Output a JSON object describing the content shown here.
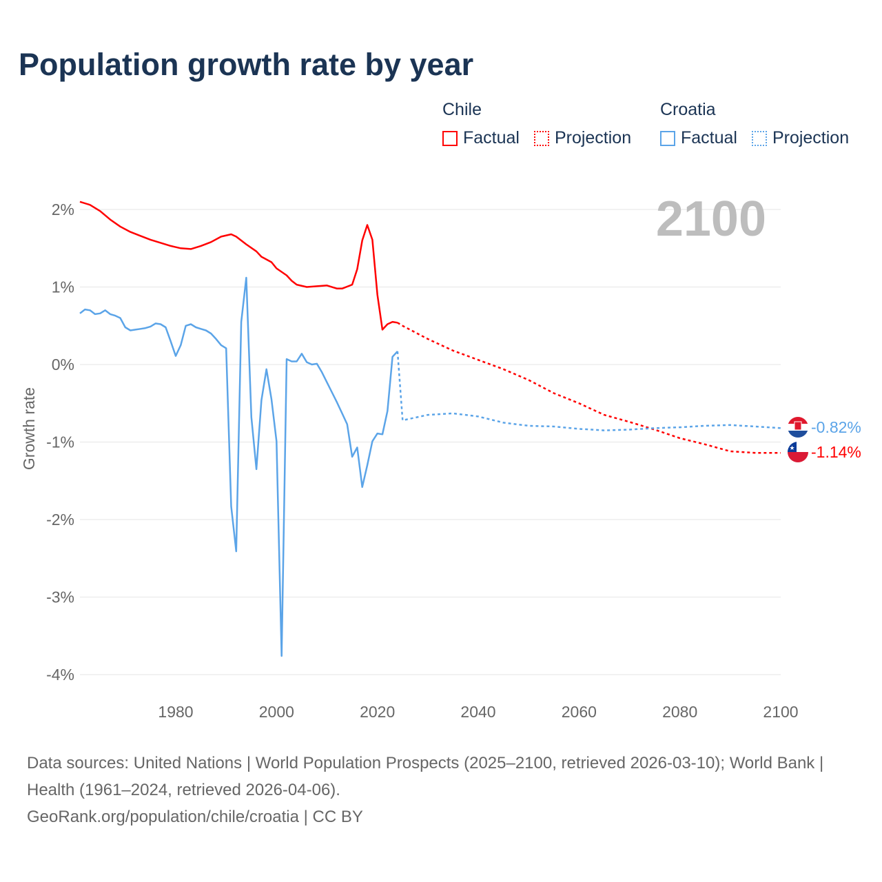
{
  "title": "Population growth rate by year",
  "legend": {
    "groups": [
      {
        "name": "Chile",
        "color": "#ff0000",
        "factual": "Factual",
        "projection": "Projection"
      },
      {
        "name": "Croatia",
        "color": "#5ba4e8",
        "factual": "Factual",
        "projection": "Projection"
      }
    ]
  },
  "year_label": "2100",
  "end_labels": {
    "croatia": "-0.82%",
    "chile": "-1.14%"
  },
  "footer": {
    "sources": "Data sources: United Nations | World Population Prospects (2025–2100, retrieved 2026-03-10); World Bank | Health (1961–2024, retrieved 2026-04-06).",
    "link": "GeoRank.org/population/chile/croatia | CC BY"
  },
  "chart_data": {
    "type": "line",
    "title": "Population growth rate by year",
    "xlabel": "",
    "ylabel": "Growth rate",
    "xlim": [
      1961,
      2100
    ],
    "ylim": [
      -4.3,
      2.2
    ],
    "xticks": [
      1980,
      2000,
      2020,
      2040,
      2060,
      2080,
      2100
    ],
    "xtick_labels": [
      "1980",
      "2000",
      "2020",
      "2040",
      "2060",
      "2080",
      "2100"
    ],
    "yticks": [
      2,
      1,
      0,
      -1,
      -2,
      -3,
      -4
    ],
    "ytick_labels": [
      "2%",
      "1%",
      "0%",
      "-1%",
      "-2%",
      "-3%",
      "-4%"
    ],
    "grid": true,
    "series": [
      {
        "name": "Chile Factual",
        "color": "#ff0000",
        "style": "solid",
        "points": [
          [
            1961,
            2.1
          ],
          [
            1963,
            2.06
          ],
          [
            1965,
            1.98
          ],
          [
            1967,
            1.87
          ],
          [
            1969,
            1.78
          ],
          [
            1971,
            1.71
          ],
          [
            1973,
            1.66
          ],
          [
            1975,
            1.61
          ],
          [
            1977,
            1.57
          ],
          [
            1979,
            1.53
          ],
          [
            1981,
            1.5
          ],
          [
            1983,
            1.49
          ],
          [
            1985,
            1.53
          ],
          [
            1987,
            1.58
          ],
          [
            1989,
            1.65
          ],
          [
            1991,
            1.68
          ],
          [
            1992,
            1.65
          ],
          [
            1994,
            1.55
          ],
          [
            1996,
            1.46
          ],
          [
            1997,
            1.39
          ],
          [
            1999,
            1.32
          ],
          [
            2000,
            1.24
          ],
          [
            2002,
            1.15
          ],
          [
            2003,
            1.08
          ],
          [
            2004,
            1.03
          ],
          [
            2006,
            1.0
          ],
          [
            2008,
            1.01
          ],
          [
            2010,
            1.02
          ],
          [
            2012,
            0.98
          ],
          [
            2013,
            0.98
          ],
          [
            2015,
            1.03
          ],
          [
            2016,
            1.23
          ],
          [
            2017,
            1.6
          ],
          [
            2018,
            1.8
          ],
          [
            2019,
            1.61
          ],
          [
            2020,
            0.9
          ],
          [
            2021,
            0.45
          ],
          [
            2022,
            0.52
          ],
          [
            2023,
            0.55
          ],
          [
            2024,
            0.54
          ]
        ]
      },
      {
        "name": "Chile Projection",
        "color": "#ff0000",
        "style": "dotted",
        "points": [
          [
            2024,
            0.54
          ],
          [
            2025,
            0.5
          ],
          [
            2030,
            0.33
          ],
          [
            2035,
            0.18
          ],
          [
            2040,
            0.06
          ],
          [
            2045,
            -0.06
          ],
          [
            2050,
            -0.2
          ],
          [
            2055,
            -0.37
          ],
          [
            2060,
            -0.5
          ],
          [
            2065,
            -0.65
          ],
          [
            2070,
            -0.74
          ],
          [
            2075,
            -0.84
          ],
          [
            2080,
            -0.95
          ],
          [
            2085,
            -1.03
          ],
          [
            2090,
            -1.12
          ],
          [
            2095,
            -1.14
          ],
          [
            2100,
            -1.14
          ]
        ]
      },
      {
        "name": "Croatia Factual",
        "color": "#5ba4e8",
        "style": "solid",
        "points": [
          [
            1961,
            0.66
          ],
          [
            1962,
            0.71
          ],
          [
            1963,
            0.7
          ],
          [
            1964,
            0.65
          ],
          [
            1965,
            0.66
          ],
          [
            1966,
            0.7
          ],
          [
            1967,
            0.65
          ],
          [
            1968,
            0.63
          ],
          [
            1969,
            0.6
          ],
          [
            1970,
            0.48
          ],
          [
            1971,
            0.44
          ],
          [
            1972,
            0.45
          ],
          [
            1973,
            0.46
          ],
          [
            1974,
            0.47
          ],
          [
            1975,
            0.49
          ],
          [
            1976,
            0.53
          ],
          [
            1977,
            0.52
          ],
          [
            1978,
            0.48
          ],
          [
            1979,
            0.3
          ],
          [
            1980,
            0.11
          ],
          [
            1981,
            0.25
          ],
          [
            1982,
            0.5
          ],
          [
            1983,
            0.52
          ],
          [
            1984,
            0.48
          ],
          [
            1985,
            0.46
          ],
          [
            1986,
            0.44
          ],
          [
            1987,
            0.4
          ],
          [
            1988,
            0.33
          ],
          [
            1989,
            0.25
          ],
          [
            1990,
            0.21
          ],
          [
            1991,
            -1.83
          ],
          [
            1992,
            -2.41
          ],
          [
            1993,
            0.55
          ],
          [
            1994,
            1.12
          ],
          [
            1995,
            -0.68
          ],
          [
            1996,
            -1.35
          ],
          [
            1997,
            -0.46
          ],
          [
            1998,
            -0.06
          ],
          [
            1999,
            -0.45
          ],
          [
            2000,
            -0.99
          ],
          [
            2001,
            -3.76
          ],
          [
            2002,
            0.07
          ],
          [
            2003,
            0.04
          ],
          [
            2004,
            0.04
          ],
          [
            2005,
            0.14
          ],
          [
            2006,
            0.03
          ],
          [
            2007,
            0.0
          ],
          [
            2008,
            0.01
          ],
          [
            2009,
            -0.1
          ],
          [
            2010,
            -0.23
          ],
          [
            2011,
            -0.36
          ],
          [
            2012,
            -0.49
          ],
          [
            2013,
            -0.63
          ],
          [
            2014,
            -0.77
          ],
          [
            2015,
            -1.19
          ],
          [
            2016,
            -1.07
          ],
          [
            2017,
            -1.58
          ],
          [
            2018,
            -1.3
          ],
          [
            2019,
            -0.99
          ],
          [
            2020,
            -0.89
          ],
          [
            2021,
            -0.9
          ],
          [
            2022,
            -0.6
          ],
          [
            2023,
            0.1
          ],
          [
            2024,
            0.17
          ]
        ]
      },
      {
        "name": "Croatia Projection",
        "color": "#5ba4e8",
        "style": "dotted",
        "points": [
          [
            2024,
            0.17
          ],
          [
            2025,
            -0.72
          ],
          [
            2030,
            -0.65
          ],
          [
            2035,
            -0.63
          ],
          [
            2040,
            -0.67
          ],
          [
            2045,
            -0.75
          ],
          [
            2050,
            -0.79
          ],
          [
            2055,
            -0.8
          ],
          [
            2060,
            -0.83
          ],
          [
            2065,
            -0.85
          ],
          [
            2070,
            -0.84
          ],
          [
            2075,
            -0.82
          ],
          [
            2080,
            -0.81
          ],
          [
            2085,
            -0.79
          ],
          [
            2090,
            -0.78
          ],
          [
            2095,
            -0.8
          ],
          [
            2100,
            -0.82
          ]
        ]
      }
    ]
  }
}
